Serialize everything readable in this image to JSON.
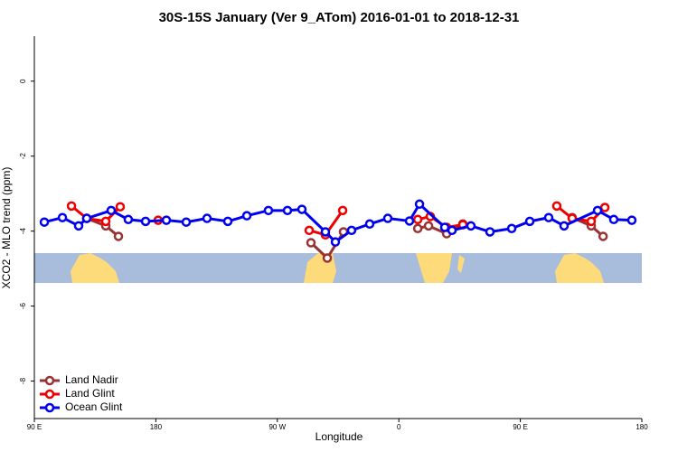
{
  "chart_data": {
    "type": "line",
    "title": "30S-15S January (Ver 9_ATom)   2016-01-01 to 2018-12-31",
    "x_label": "Longitude",
    "y_label": "XCO2 - MLO trend (ppm)",
    "xlim": [
      90,
      540
    ],
    "ylim": [
      -9,
      1.2
    ],
    "xticks": [
      {
        "value": 90,
        "label": "90 E"
      },
      180,
      {
        "value": 270,
        "label": "90 W"
      },
      {
        "value": 360,
        "label": "0"
      },
      {
        "value": 450,
        "label": "90 E"
      },
      {
        "value": 540,
        "label": "180"
      }
    ],
    "yticks": [
      0,
      -2,
      -4,
      -6,
      -8
    ],
    "legend": "bottom-left",
    "series": [
      {
        "name": "Land Nadir",
        "color": "#993333",
        "x": [
          128.8,
          142.9,
          152.3,
          null,
          294.9,
          307.0,
          319.0,
          null,
          374.0,
          382.0,
          395.4,
          407.4,
          null,
          488.4,
          502.5,
          511.3
        ],
        "values": [
          -3.66,
          -3.86,
          -4.14,
          null,
          -4.31,
          -4.72,
          -4.02,
          null,
          -3.93,
          -3.86,
          -4.07,
          -3.81,
          null,
          -3.64,
          -3.86,
          -4.14
        ]
      },
      {
        "name": "Land Glint",
        "color": "#ee0000",
        "x": [
          117.5,
          128.8,
          142.9,
          153.6,
          null,
          181.7,
          null,
          293.6,
          305.6,
          318.4,
          null,
          374.0,
          383.3,
          395.4,
          407.4,
          null,
          477.0,
          488.4,
          502.5,
          512.6
        ],
        "values": [
          -3.33,
          -3.66,
          -3.74,
          -3.35,
          null,
          -3.71,
          null,
          -3.98,
          -4.1,
          -3.45,
          null,
          -3.69,
          -3.61,
          -3.9,
          -3.83,
          null,
          -3.33,
          -3.66,
          -3.74,
          -3.37
        ]
      },
      {
        "name": "Ocean Glint",
        "color": "#0000ee",
        "x": [
          97.4,
          110.8,
          122.8,
          128.8,
          146.9,
          159.6,
          172.4,
          187.8,
          202.5,
          217.9,
          233.3,
          247.4,
          263.4,
          277.5,
          288.2,
          305.6,
          313.0,
          325.0,
          338.4,
          351.8,
          367.9,
          375.3,
          394.0,
          399.4,
          413.4,
          427.5,
          443.6,
          457.0,
          471.0,
          482.4,
          507.2,
          519.2,
          532.6
        ],
        "values": [
          -3.76,
          -3.64,
          -3.86,
          -3.66,
          -3.45,
          -3.69,
          -3.74,
          -3.71,
          -3.76,
          -3.66,
          -3.74,
          -3.59,
          -3.45,
          -3.45,
          -3.42,
          -4.02,
          -4.29,
          -3.98,
          -3.81,
          -3.66,
          -3.73,
          -3.28,
          -3.9,
          -3.98,
          -3.86,
          -4.02,
          -3.93,
          -3.74,
          -3.64,
          -3.86,
          -3.45,
          -3.69,
          -3.71
        ]
      }
    ]
  }
}
